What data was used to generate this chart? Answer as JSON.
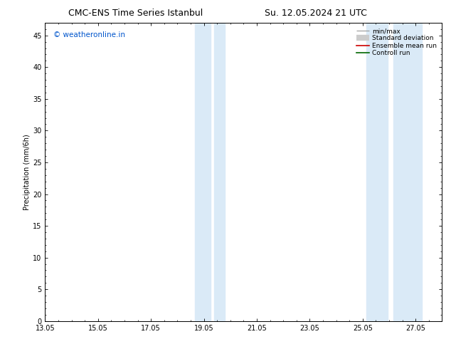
{
  "title_left": "CMC-ENS Time Series Istanbul",
  "title_right": "Su. 12.05.2024 21 UTC",
  "xlabel": "",
  "ylabel": "Precipitation (mm/6h)",
  "xlim": [
    13.05,
    28.05
  ],
  "ylim": [
    0,
    47
  ],
  "yticks": [
    0,
    5,
    10,
    15,
    20,
    25,
    30,
    35,
    40,
    45
  ],
  "xticks": [
    13.05,
    15.05,
    17.05,
    19.05,
    21.05,
    23.05,
    25.05,
    27.05
  ],
  "xtick_labels": [
    "13.05",
    "15.05",
    "17.05",
    "19.05",
    "21.05",
    "23.05",
    "25.05",
    "27.05"
  ],
  "shaded_regions": [
    [
      18.7,
      19.3
    ],
    [
      19.45,
      19.85
    ],
    [
      25.2,
      26.0
    ],
    [
      26.2,
      27.3
    ]
  ],
  "shaded_color": "#daeaf7",
  "watermark_text": "© weatheronline.in",
  "watermark_color": "#0055cc",
  "bg_color": "#ffffff",
  "font_size_title": 9,
  "font_size_axis": 7,
  "font_size_ticks": 7,
  "font_size_legend": 6.5,
  "font_size_watermark": 7.5
}
